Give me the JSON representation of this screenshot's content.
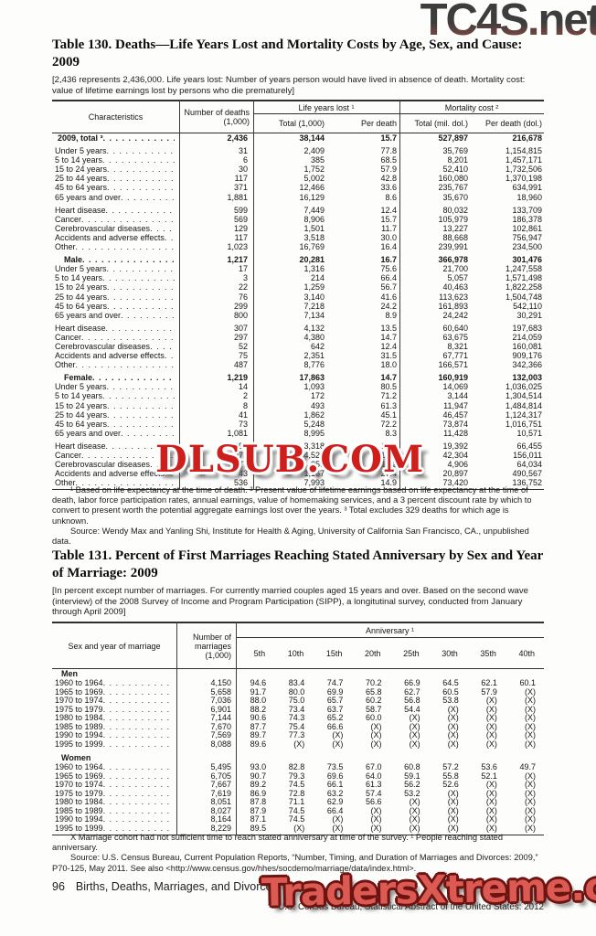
{
  "watermarks": {
    "top_right": "TC4S.net",
    "middle": "DLSUB.COM",
    "bottom": "TradersXtreme.com"
  },
  "table130": {
    "title": "Table 130. Deaths—Life Years Lost and Mortality Costs by Age, Sex, and Cause: 2009",
    "bracket_note": "[2,436 represents 2,436,000. Life years lost: Number of years person would have lived in absence of death. Mortality cost: value of lifetime earnings lost by persons who die prematurely]",
    "header": {
      "characteristics": "Characteristics",
      "deaths": "Number of deaths (1,000)",
      "group1": "Life years lost ¹",
      "group1_cols": [
        "Total (1,000)",
        "Per death"
      ],
      "group2": "Mortality cost ²",
      "group2_cols": [
        "Total (mil. dol.)",
        "Per death (dol.)"
      ]
    },
    "rows": [
      {
        "label": "2009, total ³",
        "style": "total",
        "gap": false,
        "v": [
          "2,436",
          "38,144",
          "15.7",
          "527,897",
          "216,678"
        ]
      },
      {
        "label": "Under 5 years",
        "style": "item",
        "gap": true,
        "v": [
          "31",
          "2,409",
          "77.8",
          "35,769",
          "1,154,815"
        ]
      },
      {
        "label": "5 to 14 years",
        "style": "item",
        "gap": false,
        "v": [
          "6",
          "385",
          "68.5",
          "8,201",
          "1,457,171"
        ]
      },
      {
        "label": "15 to 24 years",
        "style": "item",
        "gap": false,
        "v": [
          "30",
          "1,752",
          "57.9",
          "52,410",
          "1,732,506"
        ]
      },
      {
        "label": "25 to 44 years",
        "style": "item",
        "gap": false,
        "v": [
          "117",
          "5,002",
          "42.8",
          "160,080",
          "1,370,198"
        ]
      },
      {
        "label": "45 to 64 years",
        "style": "item",
        "gap": false,
        "v": [
          "371",
          "12,466",
          "33.6",
          "235,767",
          "634,991"
        ]
      },
      {
        "label": "65 years and over",
        "style": "item",
        "gap": false,
        "v": [
          "1,881",
          "16,129",
          "8.6",
          "35,670",
          "18,960"
        ]
      },
      {
        "label": "Heart disease",
        "style": "item",
        "gap": true,
        "v": [
          "599",
          "7,449",
          "12.4",
          "80,032",
          "133,709"
        ]
      },
      {
        "label": "Cancer",
        "style": "item",
        "gap": false,
        "v": [
          "569",
          "8,906",
          "15.7",
          "105,979",
          "186,378"
        ]
      },
      {
        "label": "Cerebrovascular diseases",
        "style": "item",
        "gap": false,
        "v": [
          "129",
          "1,501",
          "11.7",
          "13,227",
          "102,861"
        ]
      },
      {
        "label": "Accidents and adverse effects",
        "style": "item",
        "gap": false,
        "v": [
          "117",
          "3,518",
          "30.0",
          "88,668",
          "756,947"
        ]
      },
      {
        "label": "Other",
        "style": "item",
        "gap": false,
        "v": [
          "1,023",
          "16,769",
          "16.4",
          "239,991",
          "234,500"
        ]
      },
      {
        "label": "Male",
        "style": "section",
        "gap": true,
        "v": [
          "1,217",
          "20,281",
          "16.7",
          "366,978",
          "301,476"
        ]
      },
      {
        "label": "Under 5 years",
        "style": "item",
        "gap": false,
        "v": [
          "17",
          "1,316",
          "75.6",
          "21,700",
          "1,247,558"
        ]
      },
      {
        "label": "5 to 14 years",
        "style": "item",
        "gap": false,
        "v": [
          "3",
          "214",
          "66.4",
          "5,057",
          "1,571,498"
        ]
      },
      {
        "label": "15 to 24 years",
        "style": "item",
        "gap": false,
        "v": [
          "22",
          "1,259",
          "56.7",
          "40,463",
          "1,822,258"
        ]
      },
      {
        "label": "25 to 44 years",
        "style": "item",
        "gap": false,
        "v": [
          "76",
          "3,140",
          "41.6",
          "113,623",
          "1,504,748"
        ]
      },
      {
        "label": "45 to 64 years",
        "style": "item",
        "gap": false,
        "v": [
          "299",
          "7,218",
          "24.2",
          "161,893",
          "542,110"
        ]
      },
      {
        "label": "65 years and over",
        "style": "item",
        "gap": false,
        "v": [
          "800",
          "7,134",
          "8.9",
          "24,242",
          "30,291"
        ]
      },
      {
        "label": "Heart disease",
        "style": "item",
        "gap": true,
        "v": [
          "307",
          "4,132",
          "13.5",
          "60,640",
          "197,683"
        ]
      },
      {
        "label": "Cancer",
        "style": "item",
        "gap": false,
        "v": [
          "297",
          "4,380",
          "14.7",
          "63,675",
          "214,059"
        ]
      },
      {
        "label": "Cerebrovascular diseases",
        "style": "item",
        "gap": false,
        "v": [
          "52",
          "642",
          "12.4",
          "8,321",
          "160,081"
        ]
      },
      {
        "label": "Accidents and adverse effects",
        "style": "item",
        "gap": false,
        "v": [
          "75",
          "2,351",
          "31.5",
          "67,771",
          "909,176"
        ]
      },
      {
        "label": "Other",
        "style": "item",
        "gap": false,
        "v": [
          "487",
          "8,776",
          "18.0",
          "166,571",
          "342,366"
        ]
      },
      {
        "label": "Female",
        "style": "section",
        "gap": true,
        "v": [
          "1,219",
          "17,863",
          "14.7",
          "160,919",
          "132,003"
        ]
      },
      {
        "label": "Under 5 years",
        "style": "item",
        "gap": false,
        "v": [
          "14",
          "1,093",
          "80.5",
          "14,069",
          "1,036,025"
        ]
      },
      {
        "label": "5 to 14 years",
        "style": "item",
        "gap": false,
        "v": [
          "2",
          "172",
          "71.2",
          "3,144",
          "1,304,514"
        ]
      },
      {
        "label": "15 to 24 years",
        "style": "item",
        "gap": false,
        "v": [
          "8",
          "493",
          "61.3",
          "11,947",
          "1,484,814"
        ]
      },
      {
        "label": "25 to 44 years",
        "style": "item",
        "gap": false,
        "v": [
          "41",
          "1,862",
          "45.1",
          "46,457",
          "1,124,317"
        ]
      },
      {
        "label": "45 to 64 years",
        "style": "item",
        "gap": false,
        "v": [
          "73",
          "5,248",
          "72.2",
          "73,874",
          "1,016,751"
        ]
      },
      {
        "label": "65 years and over",
        "style": "item",
        "gap": false,
        "v": [
          "1,081",
          "8,995",
          "8.3",
          "11,428",
          "10,571"
        ]
      },
      {
        "label": "Heart disease",
        "style": "item",
        "gap": true,
        "v": [
          "292",
          "3,318",
          "11.4",
          "19,392",
          "66,455"
        ]
      },
      {
        "label": "Cancer",
        "style": "item",
        "gap": false,
        "v": [
          "271",
          "4,526",
          "16.7",
          "42,304",
          "156,011"
        ]
      },
      {
        "label": "Cerebrovascular diseases",
        "style": "item",
        "gap": false,
        "v": [
          "77",
          "859",
          "11.2",
          "4,906",
          "64,034"
        ]
      },
      {
        "label": "Accidents and adverse effects",
        "style": "item",
        "gap": false,
        "v": [
          "43",
          "1,167",
          "27.4",
          "20,897",
          "490,567"
        ]
      },
      {
        "label": "Other",
        "style": "item",
        "gap": false,
        "v": [
          "536",
          "7,993",
          "14.9",
          "73,420",
          "136,752"
        ]
      }
    ],
    "footnote": "¹ Based on life expectancy at the time of death. ² Present value of lifetime earnings based on life expectancy at the time of death, labor force participation rates, annual earnings, value of homemaking services, and a 3 percent discount rate by which to convert to present worth the potential aggregate earnings lost over the years. ³ Total excludes 329 deaths for which age is unknown.",
    "source": "Source: Wendy Max and Yanling Shi, Institute for Health & Aging, University of California San Francisco, CA., unpublished data."
  },
  "table131": {
    "title": "Table 131. Percent of First Marriages Reaching Stated Anniversary by Sex and Year of Marriage: 2009",
    "bracket_note": "[In percent except number of marriages. For currently married couples aged 15 years and over. Based on the second wave (interview) of the 2008 Survey of Income and Program Participation (SIPP), a longitutinal survey, conducted from January through April 2009]",
    "header": {
      "sex_year": "Sex and year of marriage",
      "marriages": "Number of marriages (1,000)",
      "anniversary": "Anniversary ¹",
      "cols": [
        "5th",
        "10th",
        "15th",
        "20th",
        "25th",
        "30th",
        "35th",
        "40th"
      ]
    },
    "sections": [
      {
        "name": "Men",
        "gap": false,
        "rows": [
          {
            "label": "1960 to 1964",
            "v": [
              "4,150",
              "94.6",
              "83.4",
              "74.7",
              "70.2",
              "66.9",
              "64.5",
              "62.1",
              "60.1"
            ]
          },
          {
            "label": "1965 to 1969",
            "v": [
              "5,658",
              "91.7",
              "80.0",
              "69.9",
              "65.8",
              "62.7",
              "60.5",
              "57.9",
              "(X)"
            ]
          },
          {
            "label": "1970 to 1974",
            "v": [
              "7,036",
              "88.0",
              "75.0",
              "65.7",
              "60.2",
              "56.8",
              "53.8",
              "(X)",
              "(X)"
            ]
          },
          {
            "label": "1975 to 1979",
            "v": [
              "6,901",
              "88.2",
              "73.4",
              "63.7",
              "58.7",
              "54.4",
              "(X)",
              "(X)",
              "(X)"
            ]
          },
          {
            "label": "1980 to 1984",
            "v": [
              "7,144",
              "90.6",
              "74.3",
              "65.2",
              "60.0",
              "(X)",
              "(X)",
              "(X)",
              "(X)"
            ]
          },
          {
            "label": "1985 to 1989",
            "v": [
              "7,670",
              "87.7",
              "75.4",
              "66.6",
              "(X)",
              "(X)",
              "(X)",
              "(X)",
              "(X)"
            ]
          },
          {
            "label": "1990 to 1994",
            "v": [
              "7,569",
              "89.7",
              "77.3",
              "(X)",
              "(X)",
              "(X)",
              "(X)",
              "(X)",
              "(X)"
            ]
          },
          {
            "label": "1995 to 1999",
            "v": [
              "8,088",
              "89.6",
              "(X)",
              "(X)",
              "(X)",
              "(X)",
              "(X)",
              "(X)",
              "(X)"
            ]
          }
        ]
      },
      {
        "name": "Women",
        "gap": true,
        "rows": [
          {
            "label": "1960 to 1964",
            "v": [
              "5,495",
              "93.0",
              "82.8",
              "73.5",
              "67.0",
              "60.8",
              "57.2",
              "53.6",
              "49.7"
            ]
          },
          {
            "label": "1965 to 1969",
            "v": [
              "6,705",
              "90.7",
              "79.3",
              "69.6",
              "64.0",
              "59.1",
              "55.8",
              "52.1",
              "(X)"
            ]
          },
          {
            "label": "1970 to 1974",
            "v": [
              "7,667",
              "89.2",
              "74.5",
              "66.1",
              "61.3",
              "56.2",
              "52.6",
              "(X)",
              "(X)"
            ]
          },
          {
            "label": "1975 to 1979",
            "v": [
              "7,619",
              "86.9",
              "72.8",
              "63.2",
              "57.4",
              "53.2",
              "(X)",
              "(X)",
              "(X)"
            ]
          },
          {
            "label": "1980 to 1984",
            "v": [
              "8,051",
              "87.8",
              "71.1",
              "62.9",
              "56.6",
              "(X)",
              "(X)",
              "(X)",
              "(X)"
            ]
          },
          {
            "label": "1985 to 1989",
            "v": [
              "8,027",
              "87.9",
              "74.5",
              "66.4",
              "(X)",
              "(X)",
              "(X)",
              "(X)",
              "(X)"
            ]
          },
          {
            "label": "1990 to 1994",
            "v": [
              "8,164",
              "87.1",
              "74.5",
              "(X)",
              "(X)",
              "(X)",
              "(X)",
              "(X)",
              "(X)"
            ]
          },
          {
            "label": "1995 to 1999",
            "v": [
              "8,229",
              "89.5",
              "(X)",
              "(X)",
              "(X)",
              "(X)",
              "(X)",
              "(X)",
              "(X)"
            ]
          }
        ]
      }
    ],
    "footnote": "X Marriage cohort had not sufficient time to reach stated anniversary at time of the survey. ¹ People reaching stated anniversary.",
    "source": "Source: U.S. Census Bureau, Current Population Reports, “Number, Timing, and Duration of Marriages and Divorces: 2009,” P70-125, May 2011. See also <http://www.census.gov/hhes/socdemo/marriage/data/index.html>."
  },
  "footer": {
    "page_number": "96",
    "section": "Births, Deaths, Marriages, and Divorces",
    "right": "U.S. Census Bureau, Statistical Abstract of the United States: 2012"
  }
}
